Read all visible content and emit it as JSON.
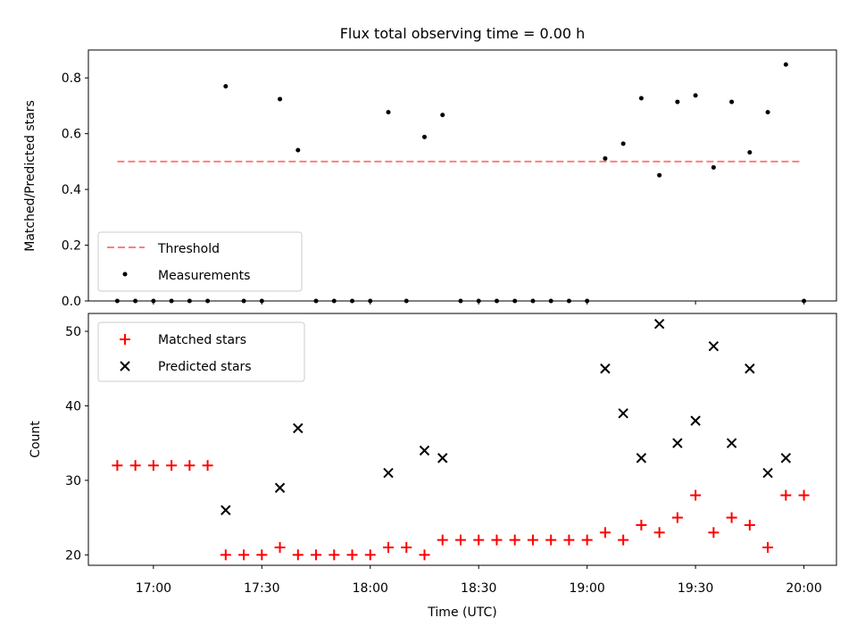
{
  "chart_data": [
    {
      "type": "scatter",
      "title": "Flux total observing time = 0.00 h",
      "xlabel": "",
      "ylabel": "Matched/Predicted stars",
      "xlim": [
        "16:42",
        "20:09"
      ],
      "ylim": [
        0,
        0.9
      ],
      "yticks": [
        0.0,
        0.2,
        0.4,
        0.6,
        0.8
      ],
      "ytick_labels": [
        "0.0",
        "0.2",
        "0.4",
        "0.6",
        "0.8"
      ],
      "xticks": [
        "17:00",
        "17:30",
        "18:00",
        "18:30",
        "19:00",
        "19:30",
        "20:00"
      ],
      "legend": {
        "placement": "lower left",
        "entries": [
          {
            "label": "Threshold",
            "color": "#ff7f7f",
            "marker": "dashed-line"
          },
          {
            "label": "Measurements",
            "color": "#000000",
            "marker": "dot"
          }
        ]
      },
      "threshold": {
        "name": "Threshold",
        "value": 0.5,
        "x_start": "16:50",
        "x_end": "19:59"
      },
      "series": [
        {
          "name": "Measurements",
          "color": "#000000",
          "points": [
            [
              "16:50",
              0.0
            ],
            [
              "16:55",
              0.0
            ],
            [
              "17:00",
              0.0
            ],
            [
              "17:05",
              0.0
            ],
            [
              "17:10",
              0.0
            ],
            [
              "17:15",
              0.0
            ],
            [
              "17:20",
              0.77
            ],
            [
              "17:25",
              0.0
            ],
            [
              "17:30",
              0.0
            ],
            [
              "17:35",
              0.724
            ],
            [
              "17:40",
              0.541
            ],
            [
              "17:45",
              0.0
            ],
            [
              "17:50",
              0.0
            ],
            [
              "17:55",
              0.0
            ],
            [
              "18:00",
              0.0
            ],
            [
              "18:05",
              0.677
            ],
            [
              "18:10",
              0.0
            ],
            [
              "18:15",
              0.588
            ],
            [
              "18:20",
              0.667
            ],
            [
              "18:25",
              0.0
            ],
            [
              "18:30",
              0.0
            ],
            [
              "18:35",
              0.0
            ],
            [
              "18:40",
              0.0
            ],
            [
              "18:45",
              0.0
            ],
            [
              "18:50",
              0.0
            ],
            [
              "18:55",
              0.0
            ],
            [
              "19:00",
              0.0
            ],
            [
              "19:05",
              0.511
            ],
            [
              "19:10",
              0.564
            ],
            [
              "19:15",
              0.727
            ],
            [
              "19:20",
              0.451
            ],
            [
              "19:25",
              0.714
            ],
            [
              "19:30",
              0.737
            ],
            [
              "19:35",
              0.479
            ],
            [
              "19:40",
              0.714
            ],
            [
              "19:45",
              0.533
            ],
            [
              "19:50",
              0.677
            ],
            [
              "19:55",
              0.848
            ],
            [
              "20:00",
              0.0
            ]
          ]
        }
      ]
    },
    {
      "type": "scatter",
      "xlabel": "Time (UTC)",
      "ylabel": "Count",
      "xlim": [
        "16:42",
        "20:09"
      ],
      "ylim": [
        18.6,
        52.4
      ],
      "yticks": [
        20,
        30,
        40,
        50
      ],
      "ytick_labels": [
        "20",
        "30",
        "40",
        "50"
      ],
      "xticks": [
        "17:00",
        "17:30",
        "18:00",
        "18:30",
        "19:00",
        "19:30",
        "20:00"
      ],
      "xtick_labels": [
        "17:00",
        "17:30",
        "18:00",
        "18:30",
        "19:00",
        "19:30",
        "20:00"
      ],
      "legend": {
        "placement": "upper left",
        "entries": [
          {
            "label": "Matched stars",
            "color": "#ff0000",
            "marker": "plus"
          },
          {
            "label": "Predicted stars",
            "color": "#000000",
            "marker": "x"
          }
        ]
      },
      "series": [
        {
          "name": "Matched stars",
          "color": "#ff0000",
          "marker": "plus",
          "points": [
            [
              "16:50",
              32
            ],
            [
              "16:55",
              32
            ],
            [
              "17:00",
              32
            ],
            [
              "17:05",
              32
            ],
            [
              "17:10",
              32
            ],
            [
              "17:15",
              32
            ],
            [
              "17:20",
              20
            ],
            [
              "17:25",
              20
            ],
            [
              "17:30",
              20
            ],
            [
              "17:35",
              21
            ],
            [
              "17:40",
              20
            ],
            [
              "17:45",
              20
            ],
            [
              "17:50",
              20
            ],
            [
              "17:55",
              20
            ],
            [
              "18:00",
              20
            ],
            [
              "18:05",
              21
            ],
            [
              "18:10",
              21
            ],
            [
              "18:15",
              20
            ],
            [
              "18:20",
              22
            ],
            [
              "18:25",
              22
            ],
            [
              "18:30",
              22
            ],
            [
              "18:35",
              22
            ],
            [
              "18:40",
              22
            ],
            [
              "18:45",
              22
            ],
            [
              "18:50",
              22
            ],
            [
              "18:55",
              22
            ],
            [
              "19:00",
              22
            ],
            [
              "19:05",
              23
            ],
            [
              "19:10",
              22
            ],
            [
              "19:15",
              24
            ],
            [
              "19:20",
              23
            ],
            [
              "19:25",
              25
            ],
            [
              "19:30",
              28
            ],
            [
              "19:35",
              23
            ],
            [
              "19:40",
              25
            ],
            [
              "19:45",
              24
            ],
            [
              "19:50",
              21
            ],
            [
              "19:55",
              28
            ],
            [
              "20:00",
              28
            ]
          ]
        },
        {
          "name": "Predicted stars",
          "color": "#000000",
          "marker": "x",
          "points": [
            [
              "17:20",
              26
            ],
            [
              "17:35",
              29
            ],
            [
              "17:40",
              37
            ],
            [
              "18:05",
              31
            ],
            [
              "18:15",
              34
            ],
            [
              "18:20",
              33
            ],
            [
              "19:05",
              45
            ],
            [
              "19:10",
              39
            ],
            [
              "19:15",
              33
            ],
            [
              "19:20",
              51
            ],
            [
              "19:25",
              35
            ],
            [
              "19:30",
              38
            ],
            [
              "19:35",
              48
            ],
            [
              "19:40",
              35
            ],
            [
              "19:45",
              45
            ],
            [
              "19:50",
              31
            ],
            [
              "19:55",
              33
            ]
          ]
        }
      ]
    }
  ]
}
